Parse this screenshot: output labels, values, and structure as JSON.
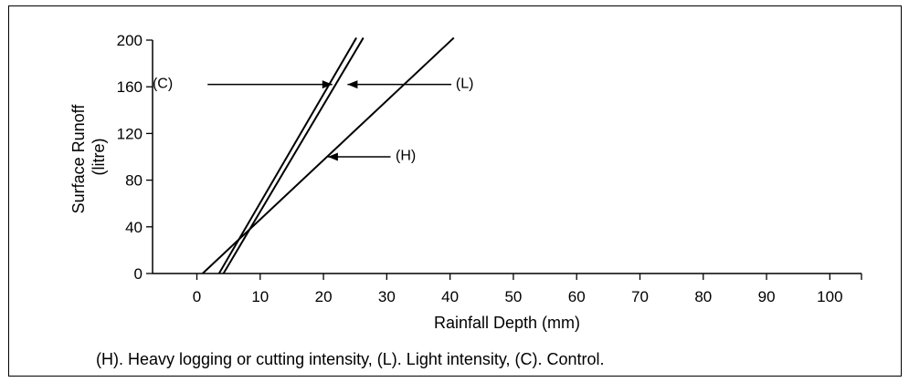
{
  "chart_data": {
    "type": "line",
    "xlabel": "Rainfall Depth (mm)",
    "ylabel_lines": [
      "Surface Runoff",
      "(litre)"
    ],
    "xlim": [
      -7,
      105
    ],
    "ylim": [
      0,
      200
    ],
    "x_ticks": [
      0,
      10,
      20,
      30,
      40,
      50,
      60,
      70,
      80,
      90,
      100
    ],
    "y_ticks": [
      0,
      40,
      80,
      120,
      160,
      200
    ],
    "grid": false,
    "series": [
      {
        "name": "(C)",
        "x": [
          3.5,
          25.2
        ],
        "y": [
          0,
          202
        ]
      },
      {
        "name": "(L)",
        "x": [
          4.2,
          26.3
        ],
        "y": [
          0,
          202
        ]
      },
      {
        "name": "(H)",
        "x": [
          0.9,
          40.6
        ],
        "y": [
          0,
          202
        ]
      }
    ],
    "annotations": [
      {
        "label": "(C)",
        "text_x": -3.8,
        "text_y": 163,
        "arrow_from": [
          1.7,
          162
        ],
        "arrow_to": [
          21.4,
          162
        ],
        "anchor": "end"
      },
      {
        "label": "(L)",
        "text_x": 40.9,
        "text_y": 163,
        "arrow_from": [
          40.2,
          162
        ],
        "arrow_to": [
          23.8,
          162
        ],
        "anchor": "start"
      },
      {
        "label": "(H)",
        "text_x": 31.4,
        "text_y": 101,
        "arrow_from": [
          30.6,
          100
        ],
        "arrow_to": [
          20.7,
          100
        ],
        "anchor": "start"
      }
    ]
  },
  "caption": "(H). Heavy logging or cutting intensity, (L). Light intensity, (C). Control."
}
